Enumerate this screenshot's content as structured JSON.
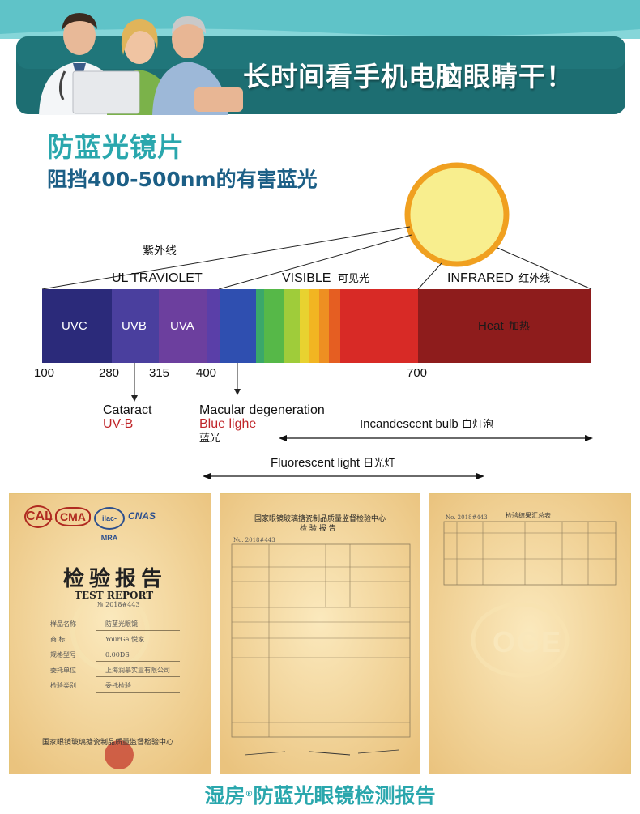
{
  "banner": {
    "title": "长时间看手机电脑眼睛干！",
    "color_top": "#5fc3c8",
    "color_bottom": "#1d6e72"
  },
  "lens": {
    "title": "防蓝光镜片",
    "subtitle": "阻挡400-500nm的有害蓝光"
  },
  "spectrum": {
    "uv_zh": "紫外线",
    "uv_label": "UL TRAVIOLET",
    "visible_label": "VISIBLE",
    "visible_zh": "可见光",
    "infrared_label": "INFRARED",
    "infrared_zh": "红外线",
    "bands": {
      "uvc": "UVC",
      "uvb": "UVB",
      "uva": "UVA",
      "heat": "Heat",
      "heat_zh": "加热"
    },
    "ticks": [
      "100",
      "280",
      "315",
      "400",
      "700"
    ],
    "cataract": "Cataract",
    "cataract_uv": "UV-B",
    "macular": "Macular degeneration",
    "blue_light": "Blue lighe",
    "blue_light_zh": "蓝光",
    "incandescent": "Incandescent bulb",
    "incandescent_zh": "白灯泡",
    "fluorescent": "Fluorescent light",
    "fluorescent_zh": "日光灯",
    "colors": {
      "uvc": "#2b2a7a",
      "uvb": "#4a3f9e",
      "uva": "#6c3f9e",
      "heat": "#8e1c1c",
      "sun_fill": "#f8ee8e",
      "sun_ring": "#f0a020"
    }
  },
  "reports": {
    "r1": {
      "title_zh": "检验报告",
      "title_en": "TEST REPORT",
      "number": "№ 2018#443",
      "rows": [
        {
          "k": "样品名称",
          "v": "防蓝光眼镜"
        },
        {
          "k": "商    标",
          "v": "YourGa 悦家"
        },
        {
          "k": "规格型号",
          "v": "0.00DS"
        },
        {
          "k": "委托单位",
          "v": "上海润慕实业有限公司"
        },
        {
          "k": "检验类别",
          "v": "委托检验"
        }
      ],
      "issuer": "国家眼镜玻璃搪瓷制品质量监督检验中心",
      "logos": [
        "CAL",
        "CMA",
        "ilac-MRA",
        "CNAS"
      ]
    },
    "r2": {
      "title": "国家眼镜玻璃搪瓷制品质量监督检验中心",
      "subtitle": "检 验 报 告",
      "number": "No. 2018#443"
    },
    "r3": {
      "title": "检验结果汇总表",
      "number": "No. 2018#443",
      "watermark": "OGE"
    }
  },
  "footer": {
    "title_a": "湿房",
    "reg": "®",
    "title_b": "防蓝光眼镜检测报告"
  }
}
